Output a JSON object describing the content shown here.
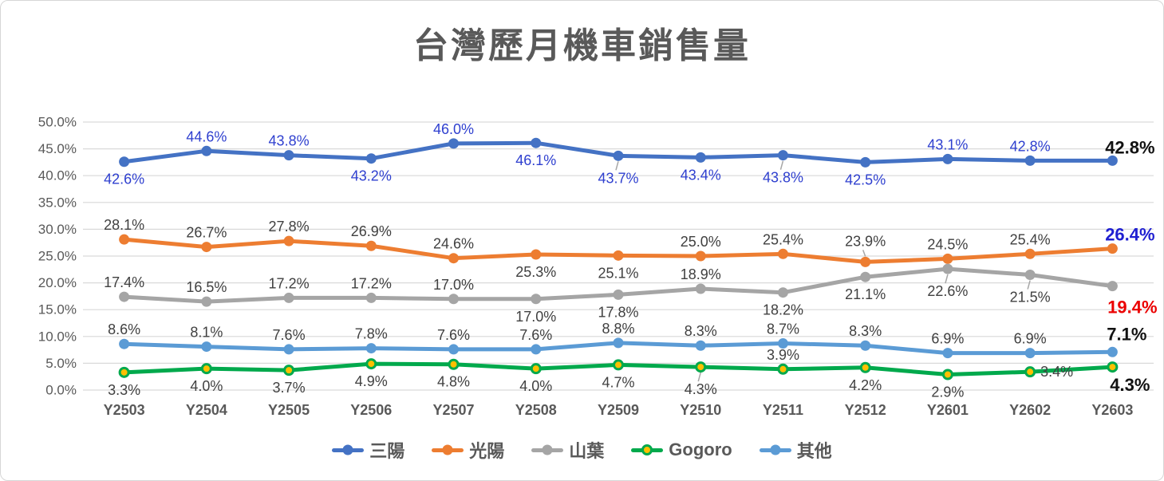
{
  "chart_data": {
    "type": "line",
    "title": "台灣歷月機車銷售量",
    "categories": [
      "Y2503",
      "Y2504",
      "Y2505",
      "Y2506",
      "Y2507",
      "Y2508",
      "Y2509",
      "Y2510",
      "Y2511",
      "Y2512",
      "Y2601",
      "Y2602",
      "Y2603"
    ],
    "y_axis": {
      "min": 0,
      "max": 50,
      "step": 5
    },
    "y_ticks": [
      "0.0%",
      "5.0%",
      "10.0%",
      "15.0%",
      "20.0%",
      "25.0%",
      "30.0%",
      "35.0%",
      "40.0%",
      "45.0%",
      "50.0%"
    ],
    "grid": true,
    "legend_position": "bottom",
    "grid_color": "#D9D9D9",
    "axis_label_color": "#595959",
    "series": [
      {
        "id": "sym",
        "name": "三陽",
        "color": "#4472C4",
        "marker_fill": "#4472C4",
        "marker_stroke": "#4472C4",
        "label_color": "#2E3FCF",
        "end_label_color": "#111111",
        "values": [
          42.6,
          44.6,
          43.8,
          43.2,
          46.0,
          46.1,
          43.7,
          43.4,
          43.8,
          42.5,
          43.1,
          42.8,
          42.8
        ],
        "label_pos": [
          "below",
          "above",
          "above",
          "below",
          "above",
          "below",
          "below",
          "below",
          "below",
          "below",
          "above",
          "above",
          "above"
        ],
        "leader_points": [
          6,
          8
        ],
        "end_label_offset": {
          "dx": 22,
          "dy": -9
        }
      },
      {
        "id": "kymco",
        "name": "光陽",
        "color": "#ED7D31",
        "marker_fill": "#ED7D31",
        "marker_stroke": "#ED7D31",
        "label_color": "#404040",
        "end_label_color": "#1F1FD1",
        "values": [
          28.1,
          26.7,
          27.8,
          26.9,
          24.6,
          25.3,
          25.1,
          25.0,
          25.4,
          23.9,
          24.5,
          25.4,
          26.4
        ],
        "label_pos": [
          "above",
          "above",
          "above",
          "above",
          "above",
          "below",
          "below",
          "above",
          "above",
          "above",
          "above",
          "above",
          "above"
        ],
        "leader_points": [
          9
        ],
        "end_label_offset": {
          "dx": 22,
          "dy": -10
        }
      },
      {
        "id": "yamaha",
        "name": "山葉",
        "color": "#A5A5A5",
        "marker_fill": "#A5A5A5",
        "marker_stroke": "#A5A5A5",
        "label_color": "#404040",
        "end_label_color": "#EB0000",
        "values": [
          17.4,
          16.5,
          17.2,
          17.2,
          17.0,
          17.0,
          17.8,
          18.9,
          18.2,
          21.1,
          22.6,
          21.5,
          19.4
        ],
        "label_pos": [
          "above",
          "above",
          "above",
          "above",
          "above",
          "below",
          "below",
          "above",
          "below",
          "below",
          "below",
          "below",
          "below"
        ],
        "leader_points": [
          10,
          11
        ],
        "end_label_offset": {
          "dx": 25,
          "dy": 34
        }
      },
      {
        "id": "gogoro",
        "name": "Gogoro",
        "color": "#00A94C",
        "marker_fill": "#FFC000",
        "marker_stroke": "#00A94C",
        "label_color": "#404040",
        "end_label_color": "#111111",
        "values": [
          3.3,
          4.0,
          3.7,
          4.9,
          4.8,
          4.0,
          4.7,
          4.3,
          3.9,
          4.2,
          2.9,
          3.4,
          4.3
        ],
        "label_pos": [
          "below",
          "below",
          "below",
          "below",
          "below",
          "below",
          "below",
          "below",
          "above",
          "below",
          "below",
          "right",
          "below"
        ],
        "leader_points": [
          7
        ],
        "end_label_offset": {
          "dx": 22,
          "dy": 30
        }
      },
      {
        "id": "others",
        "name": "其他",
        "color": "#5B9BD5",
        "marker_fill": "#5B9BD5",
        "marker_stroke": "#5B9BD5",
        "label_color": "#404040",
        "end_label_color": "#111111",
        "values": [
          8.6,
          8.1,
          7.6,
          7.8,
          7.6,
          7.6,
          8.8,
          8.3,
          8.7,
          8.3,
          6.9,
          6.9,
          7.1
        ],
        "label_pos": [
          "above",
          "above",
          "above",
          "above",
          "above",
          "above",
          "above",
          "above",
          "above",
          "above",
          "above",
          "above",
          "above"
        ],
        "leader_points": [],
        "end_label_offset": {
          "dx": 18,
          "dy": -15
        }
      }
    ]
  }
}
